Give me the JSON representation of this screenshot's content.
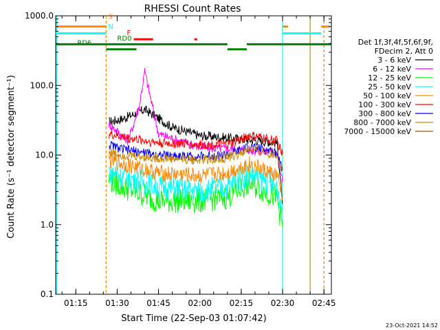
{
  "chart_data": {
    "type": "line",
    "title": "RHESSI Count Rates",
    "xlabel": "Start Time (22-Sep-03 01:07:42)",
    "ylabel": "Count Rate (s⁻¹ detector segment⁻¹)",
    "y_scale": "log",
    "ylim": [
      0.1,
      1000
    ],
    "y_ticks": [
      0.1,
      1,
      10,
      100,
      1000
    ],
    "y_tick_labels": [
      "0.1",
      "1.0",
      "10.0",
      "100.0",
      "1000.0"
    ],
    "xlim": [
      "01:07:42",
      "02:47:42"
    ],
    "x_tick_labels": [
      "01:15",
      "01:30",
      "01:45",
      "02:00",
      "02:15",
      "02:30",
      "02:45"
    ],
    "grid": false,
    "legend_header": [
      "Det 1f,3f,4f,5f,6f,9f,",
      "FDecim 2, Att 0"
    ],
    "series": [
      {
        "name": "3 - 6 keV",
        "color": "#000000",
        "x": [
          "01:27",
          "01:32",
          "01:40",
          "01:50",
          "02:00",
          "02:15",
          "02:28",
          "02:30"
        ],
        "values": [
          30,
          33,
          45,
          25,
          19,
          17,
          15,
          2
        ]
      },
      {
        "name": "6 - 12 keV",
        "color": "#ff00ff",
        "x": [
          "01:27",
          "01:34",
          "01:38",
          "01:40",
          "01:45",
          "02:00",
          "02:15",
          "02:28",
          "02:30"
        ],
        "values": [
          28,
          16,
          50,
          160,
          20,
          13,
          12,
          11,
          4
        ]
      },
      {
        "name": "12 - 25 keV",
        "color": "#00ff00",
        "x": [
          "01:27",
          "01:32",
          "01:45",
          "02:00",
          "02:10",
          "02:18",
          "02:28",
          "02:30"
        ],
        "values": [
          4.5,
          3.5,
          2.2,
          2.2,
          2.5,
          4,
          2.4,
          0.9
        ]
      },
      {
        "name": "25 - 50 keV",
        "color": "#00ffff",
        "x": [
          "01:27",
          "01:32",
          "01:45",
          "02:00",
          "02:10",
          "02:18",
          "02:28",
          "02:30"
        ],
        "values": [
          6,
          5,
          3.5,
          3,
          3.5,
          5.5,
          3.5,
          1.6
        ]
      },
      {
        "name": "50 - 100 keV",
        "color": "#ff8800",
        "x": [
          "01:27",
          "01:32",
          "01:45",
          "02:00",
          "02:10",
          "02:18",
          "02:28",
          "02:30"
        ],
        "values": [
          8.5,
          7.5,
          5.5,
          5,
          5.5,
          7.5,
          5,
          2.5
        ]
      },
      {
        "name": "100 - 300 keV",
        "color": "#ff0000",
        "x": [
          "01:27",
          "01:32",
          "01:45",
          "02:00",
          "02:10",
          "02:18",
          "02:28",
          "02:30"
        ],
        "values": [
          20,
          18,
          15,
          14,
          14,
          19,
          16,
          10
        ]
      },
      {
        "name": "300 - 800 keV",
        "color": "#0000ff",
        "x": [
          "01:27",
          "01:32",
          "01:45",
          "02:00",
          "02:10",
          "02:18",
          "02:28",
          "02:30"
        ],
        "values": [
          14,
          12,
          10,
          9.5,
          10,
          13,
          11,
          6
        ]
      },
      {
        "name": "800 - 7000 keV",
        "color": "#cc8800",
        "x": [
          "01:27",
          "01:32",
          "01:45",
          "02:00",
          "02:10",
          "02:18",
          "02:28",
          "02:30"
        ],
        "values": [
          11,
          10,
          9,
          8.5,
          9,
          12,
          10,
          6
        ]
      },
      {
        "name": "7000 - 15000 keV",
        "color": "#8b5a00",
        "x": [],
        "values": []
      }
    ],
    "annotations": [
      {
        "label": "S",
        "color": "#ff8800"
      },
      {
        "label": "N",
        "color": "#00ffff"
      },
      {
        "label": "F",
        "color": "#ff0000"
      },
      {
        "label": "RD0",
        "color": "#008000"
      },
      {
        "label": "RD6",
        "color": "#008000"
      }
    ],
    "flag_bars": [
      {
        "label": "S",
        "color": "#ff8800",
        "value": 700,
        "segments": [
          [
            "01:07:42",
            "01:26"
          ],
          [
            "02:30",
            "02:32"
          ],
          [
            "02:44",
            "02:47"
          ]
        ]
      },
      {
        "label": "N",
        "color": "#00ffff",
        "value": 560,
        "segments": [
          [
            "01:07:42",
            "01:26"
          ],
          [
            "02:30",
            "02:44"
          ]
        ]
      },
      {
        "label": "F",
        "color": "#ff0000",
        "value": 460,
        "segments": [
          [
            "01:36",
            "01:43"
          ],
          [
            "01:58",
            "01:59"
          ]
        ]
      },
      {
        "label": "RD0",
        "color": "#008000",
        "value": 390,
        "segments": [
          [
            "01:07:42",
            "01:37"
          ],
          [
            "01:37",
            "02:10"
          ],
          [
            "02:17",
            "02:47:42"
          ]
        ]
      },
      {
        "label": "RD6",
        "color": "#008000",
        "value": 330,
        "segments": [
          [
            "01:26",
            "01:37"
          ],
          [
            "02:10",
            "02:17"
          ]
        ]
      }
    ],
    "vertical_markers": [
      {
        "x": "01:08",
        "color": "#00ffff",
        "style": "solid"
      },
      {
        "x": "01:26",
        "color": "#00ffff",
        "style": "dashed"
      },
      {
        "x": "01:26",
        "color": "#ff8800",
        "style": "dashed"
      },
      {
        "x": "02:30",
        "color": "#00ffff",
        "style": "solid"
      },
      {
        "x": "02:40",
        "color": "#cc8800",
        "style": "solid"
      },
      {
        "x": "02:45",
        "color": "#00ffff",
        "style": "dashed"
      },
      {
        "x": "02:45",
        "color": "#ff8800",
        "style": "dashed"
      }
    ]
  },
  "footer": {
    "timestamp": "23-Oct-2021 14:52"
  }
}
